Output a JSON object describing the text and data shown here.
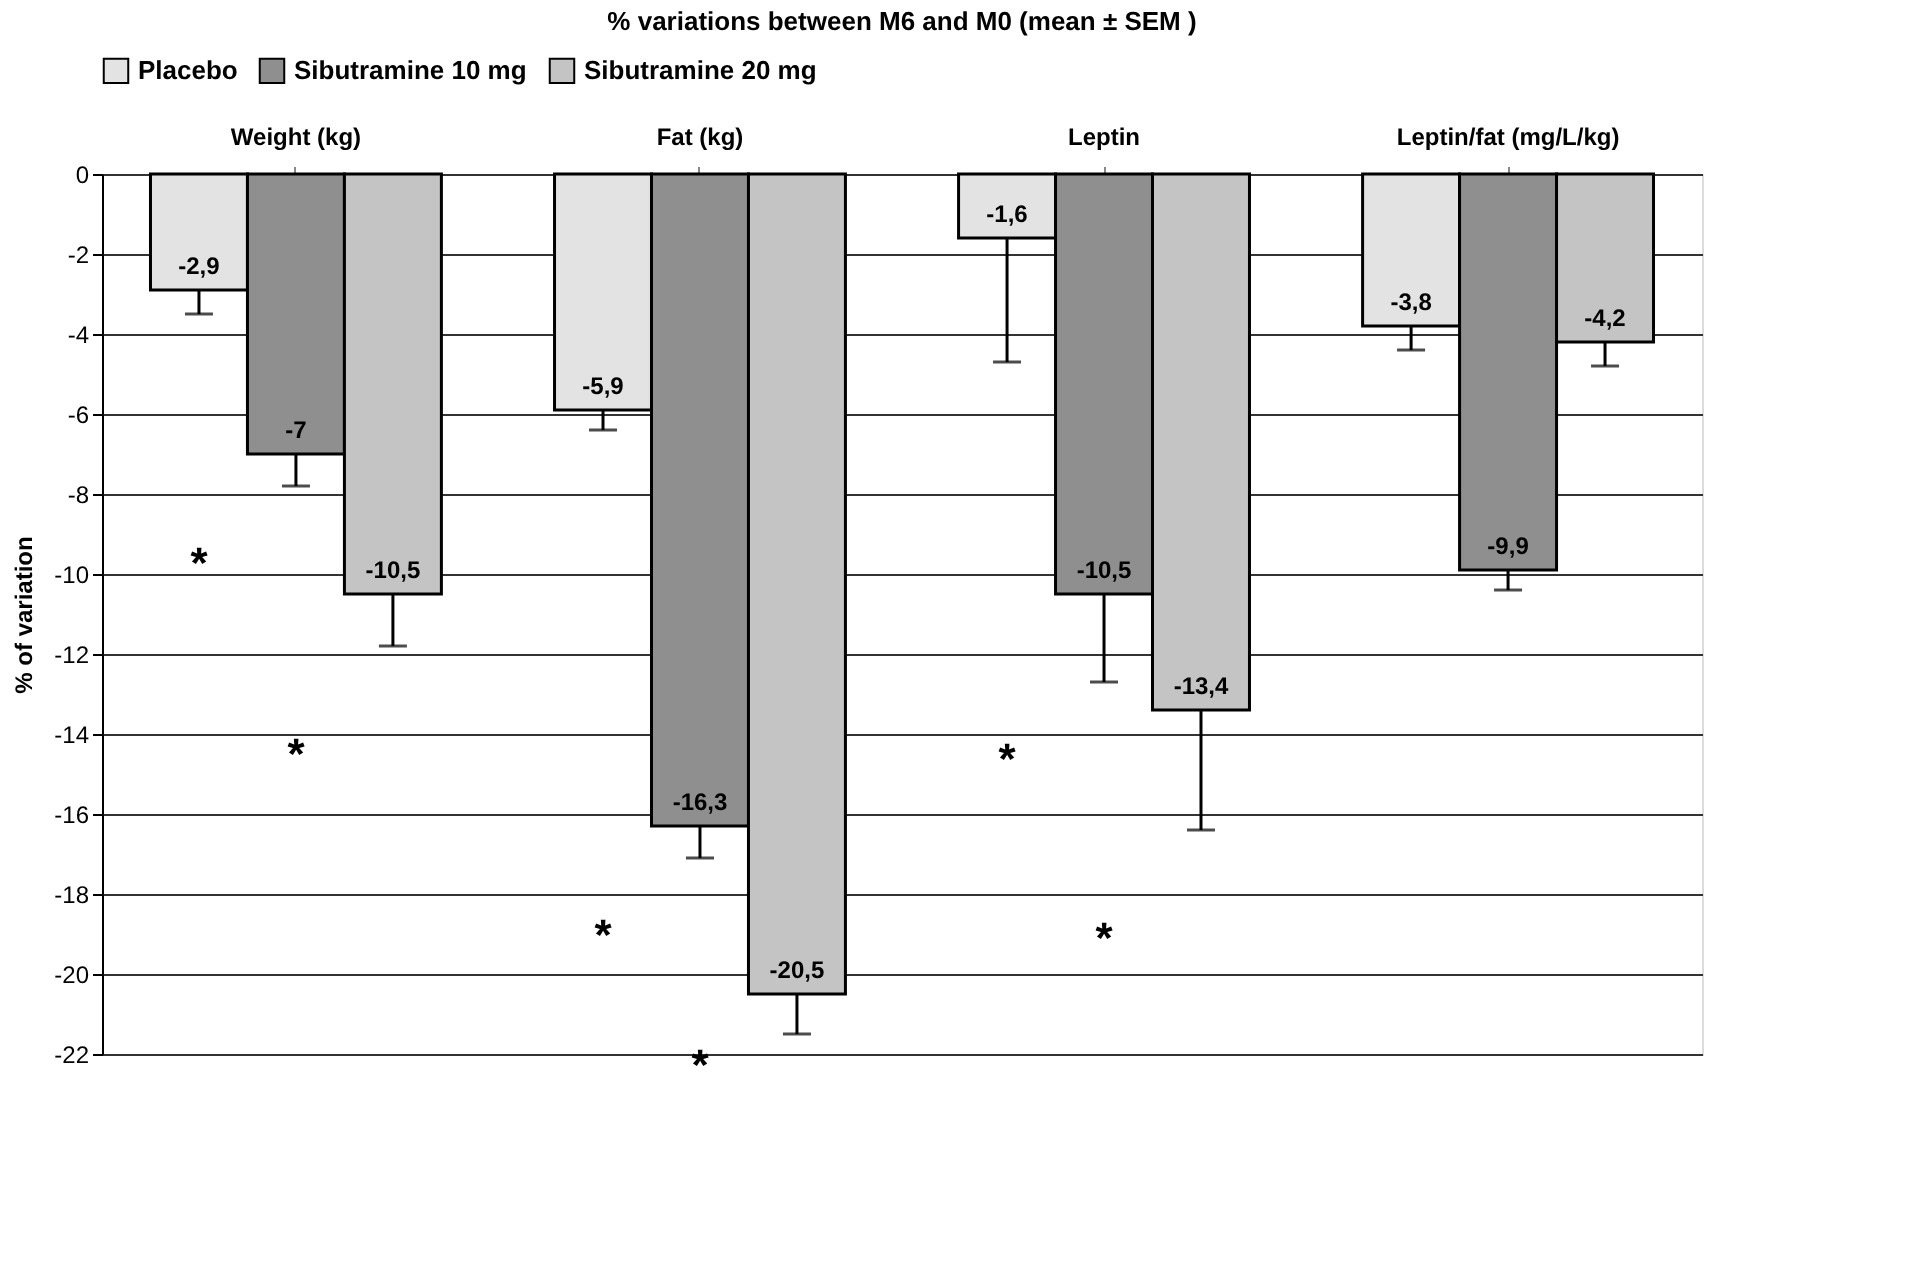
{
  "chart_data": {
    "type": "bar",
    "title": "% variations between M6 and M0 (mean ± SEM )",
    "categories": [
      "Weight (kg)",
      "Fat (kg)",
      "Leptin",
      "Leptin/fat (mg/L/kg)"
    ],
    "series": [
      {
        "name": "Placebo",
        "color": "#e3e3e3",
        "values": [
          -2.9,
          -5.9,
          -1.6,
          -3.8
        ],
        "value_labels": [
          "-2,9",
          "-5,9",
          "-1,6",
          "-3,8"
        ],
        "errors": [
          [
            -3.5,
            -2.9
          ],
          [
            -6.4,
            -5.9
          ],
          [
            -4.7,
            -1.6
          ],
          [
            -4.4,
            -3.8
          ]
        ]
      },
      {
        "name": "Sibutramine 10 mg",
        "color": "#8f8f8f",
        "values": [
          -7,
          -16.3,
          -10.5,
          -9.9
        ],
        "value_labels": [
          "-7",
          "-16,3",
          "-10,5",
          "-9,9"
        ],
        "errors": [
          [
            -7.8,
            -7
          ],
          [
            -17.1,
            -16.3
          ],
          [
            -12.7,
            -10.5
          ],
          [
            -10.4,
            -9.9
          ]
        ]
      },
      {
        "name": "Sibutramine 20 mg",
        "color": "#c4c4c4",
        "values": [
          -10.5,
          -20.5,
          -13.4,
          -4.2
        ],
        "value_labels": [
          "-10,5",
          "-20,5",
          "-13,4",
          "-4,2"
        ],
        "errors": [
          [
            -11.8,
            -10.5
          ],
          [
            -21.5,
            -20.5
          ],
          [
            -16.4,
            -13.4
          ],
          [
            -4.8,
            -4.2
          ]
        ]
      }
    ],
    "ylabel": "% of variation",
    "ylim": [
      -22,
      0
    ],
    "yticks": [
      0,
      -2,
      -4,
      -6,
      -8,
      -10,
      -12,
      -14,
      -16,
      -18,
      -20,
      -22
    ],
    "grid": "y",
    "legend": "top",
    "annotations": [
      "*",
      "*",
      "*",
      "*",
      "*",
      "*"
    ]
  }
}
